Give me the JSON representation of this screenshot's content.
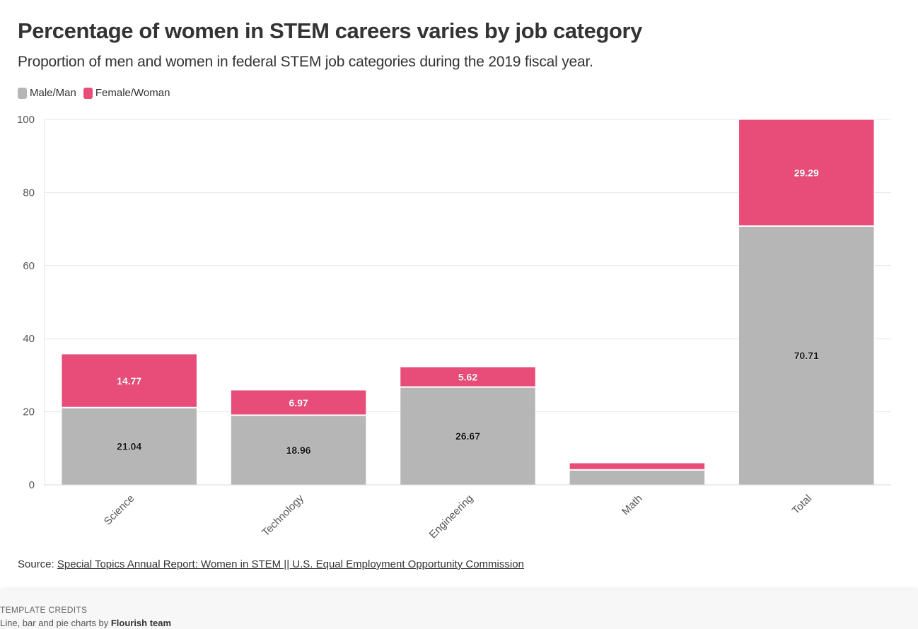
{
  "title": "Percentage of women in STEM careers varies by job category",
  "subtitle": "Proportion of men and women in federal STEM job categories during the 2019 fiscal year.",
  "colors": {
    "male": "#b6b6b6",
    "female": "#e84d7a",
    "grid": "#e6e6e6",
    "text": "#333333"
  },
  "chart_data": {
    "type": "bar",
    "stacked": true,
    "title": "Percentage of women in STEM careers varies by job category",
    "xlabel": "",
    "ylabel": "",
    "ylim": [
      0,
      100
    ],
    "yticks": [
      "0",
      "20",
      "40",
      "60",
      "80",
      "100"
    ],
    "categories": [
      "Science",
      "Technology",
      "Engineering",
      "Math",
      "Total"
    ],
    "series": [
      {
        "name": "Male/Man",
        "values": [
          21.04,
          18.96,
          26.67,
          4.0,
          70.71
        ],
        "labels": [
          "21.04",
          "18.96",
          "26.67",
          "",
          "70.71"
        ]
      },
      {
        "name": "Female/Woman",
        "values": [
          14.77,
          6.97,
          5.62,
          2.0,
          29.29
        ],
        "labels": [
          "14.77",
          "6.97",
          "5.62",
          "",
          "29.29"
        ]
      }
    ],
    "legend": "top-left"
  },
  "source": {
    "prefix": "Source: ",
    "link_text": "Special Topics Annual Report: Women in STEM || U.S. Equal Employment Opportunity Commission"
  },
  "credits": {
    "label": "TEMPLATE CREDITS",
    "text": "Line, bar and pie charts by ",
    "author": "Flourish team"
  }
}
